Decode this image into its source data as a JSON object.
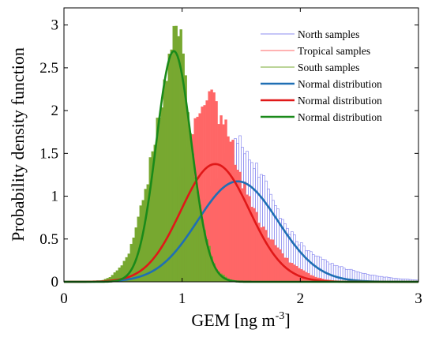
{
  "chart_data": {
    "type": "histogram",
    "xlabel": "GEM [ng m",
    "xlabel_sup": "-3",
    "xlabel_close": "]",
    "ylabel": "Probability density function",
    "xlim": [
      0,
      3
    ],
    "ylim": [
      0,
      3.2
    ],
    "xticks": [
      "0",
      "1",
      "2",
      "3"
    ],
    "yticks": [
      "0",
      "0.5",
      "1",
      "1.5",
      "2",
      "2.5",
      "3"
    ],
    "legend_position": "top-right",
    "series": [
      {
        "name": "North samples",
        "kind": "histogram",
        "style": "outline",
        "color": "#8c8cf0",
        "points": [
          [
            0.3,
            0
          ],
          [
            0.5,
            0.04
          ],
          [
            0.6,
            0.08
          ],
          [
            0.7,
            0.13
          ],
          [
            0.8,
            0.22
          ],
          [
            0.9,
            0.38
          ],
          [
            1.0,
            0.58
          ],
          [
            1.1,
            0.8
          ],
          [
            1.2,
            1.0
          ],
          [
            1.3,
            1.22
          ],
          [
            1.35,
            1.38
          ],
          [
            1.4,
            1.52
          ],
          [
            1.45,
            1.6
          ],
          [
            1.5,
            1.6
          ],
          [
            1.55,
            1.55
          ],
          [
            1.6,
            1.45
          ],
          [
            1.7,
            1.15
          ],
          [
            1.8,
            0.85
          ],
          [
            1.9,
            0.6
          ],
          [
            2.0,
            0.44
          ],
          [
            2.1,
            0.33
          ],
          [
            2.2,
            0.25
          ],
          [
            2.3,
            0.19
          ],
          [
            2.4,
            0.15
          ],
          [
            2.5,
            0.11
          ],
          [
            2.6,
            0.08
          ],
          [
            2.7,
            0.06
          ],
          [
            2.8,
            0.04
          ],
          [
            2.9,
            0.03
          ],
          [
            3.0,
            0.02
          ]
        ]
      },
      {
        "name": "Tropical samples",
        "kind": "histogram",
        "style": "filled",
        "color": "#ff6666",
        "points": [
          [
            0.4,
            0
          ],
          [
            0.6,
            0.1
          ],
          [
            0.7,
            0.25
          ],
          [
            0.8,
            0.5
          ],
          [
            0.9,
            0.9
          ],
          [
            1.0,
            1.3
          ],
          [
            1.05,
            1.6
          ],
          [
            1.1,
            1.8
          ],
          [
            1.15,
            2.05
          ],
          [
            1.2,
            2.2
          ],
          [
            1.25,
            2.15
          ],
          [
            1.3,
            2.0
          ],
          [
            1.35,
            1.88
          ],
          [
            1.4,
            1.7
          ],
          [
            1.45,
            1.45
          ],
          [
            1.5,
            1.2
          ],
          [
            1.6,
            0.85
          ],
          [
            1.7,
            0.6
          ],
          [
            1.8,
            0.4
          ],
          [
            1.9,
            0.25
          ],
          [
            2.0,
            0.15
          ],
          [
            2.1,
            0.07
          ],
          [
            2.2,
            0.03
          ],
          [
            2.3,
            0.01
          ],
          [
            2.4,
            0
          ]
        ]
      },
      {
        "name": "South samples",
        "kind": "histogram",
        "style": "filled",
        "color": "#77a830",
        "points": [
          [
            0.3,
            0
          ],
          [
            0.4,
            0.06
          ],
          [
            0.5,
            0.2
          ],
          [
            0.55,
            0.35
          ],
          [
            0.6,
            0.55
          ],
          [
            0.65,
            0.85
          ],
          [
            0.7,
            1.15
          ],
          [
            0.75,
            1.5
          ],
          [
            0.8,
            1.9
          ],
          [
            0.85,
            2.3
          ],
          [
            0.88,
            2.55
          ],
          [
            0.92,
            2.8
          ],
          [
            0.95,
            2.95
          ],
          [
            0.98,
            3.0
          ],
          [
            1.0,
            2.85
          ],
          [
            1.02,
            2.5
          ],
          [
            1.05,
            2.1
          ],
          [
            1.08,
            1.7
          ],
          [
            1.1,
            1.3
          ],
          [
            1.15,
            0.9
          ],
          [
            1.2,
            0.55
          ],
          [
            1.25,
            0.3
          ],
          [
            1.3,
            0.12
          ],
          [
            1.4,
            0.03
          ],
          [
            1.5,
            0
          ]
        ]
      },
      {
        "name": "Normal distribution",
        "kind": "normal_pdf",
        "color": "#1f6fb4",
        "mu": 1.47,
        "sigma": 0.34
      },
      {
        "name": "Normal distribution",
        "kind": "normal_pdf",
        "color": "#e01818",
        "mu": 1.28,
        "sigma": 0.29
      },
      {
        "name": "Normal distribution",
        "kind": "normal_pdf",
        "color": "#1a8a1a",
        "mu": 0.93,
        "sigma": 0.148
      }
    ]
  }
}
